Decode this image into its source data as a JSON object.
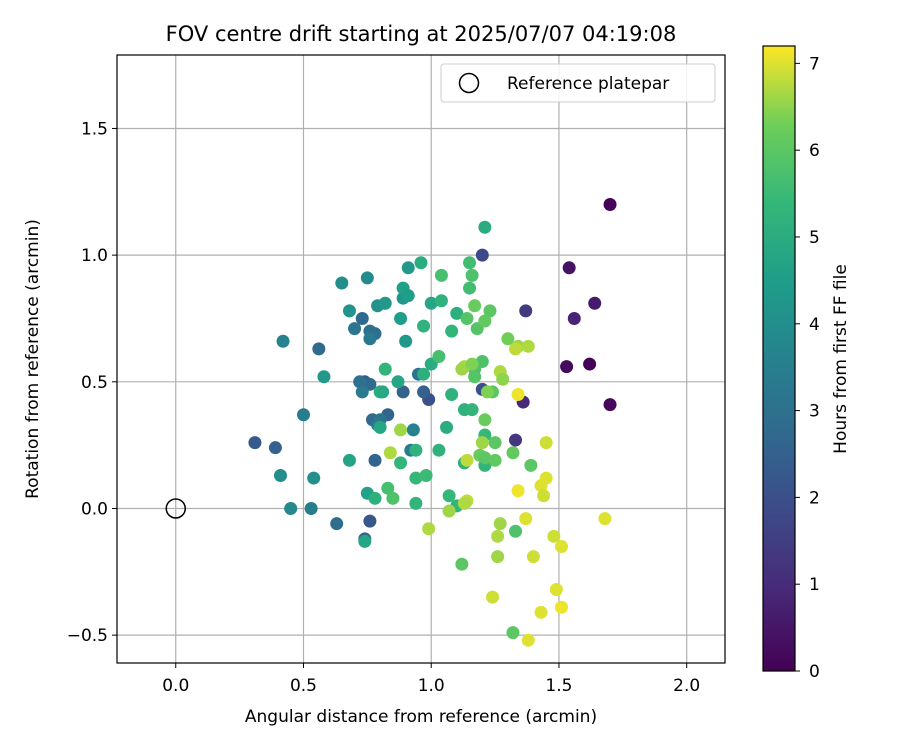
{
  "chart_data": {
    "type": "scatter",
    "title": "FOV centre drift starting at 2025/07/07 04:19:08",
    "xlabel": "Angular distance from reference (arcmin)",
    "ylabel": "Rotation from reference (arcmin)",
    "xlim": [
      -0.23,
      2.15
    ],
    "ylim": [
      -0.61,
      1.79
    ],
    "xticks": [
      0.0,
      0.5,
      1.0,
      1.5,
      2.0
    ],
    "xtick_labels": [
      "0.0",
      "0.5",
      "1.0",
      "1.5",
      "2.0"
    ],
    "yticks": [
      -0.5,
      0.0,
      0.5,
      1.0,
      1.5
    ],
    "ytick_labels": [
      "−0.5",
      "0.0",
      "0.5",
      "1.0",
      "1.5"
    ],
    "grid": true,
    "legend": {
      "placement": "top-right",
      "entries": [
        "Reference platepar"
      ]
    },
    "reference_point": {
      "x": 0.0,
      "y": 0.0,
      "label": "Reference platepar"
    },
    "colorbar": {
      "label": "Hours from first FF file",
      "colormap": "viridis",
      "range": [
        0,
        7.2
      ],
      "ticks": [
        0,
        1,
        2,
        3,
        4,
        5,
        6,
        7
      ],
      "tick_labels": [
        "0",
        "1",
        "2",
        "3",
        "4",
        "5",
        "6",
        "7"
      ]
    },
    "series": [
      {
        "color_by": "hours",
        "points": [
          {
            "x": 1.7,
            "y": 1.2,
            "h": 0.1
          },
          {
            "x": 1.54,
            "y": 0.95,
            "h": 0.4
          },
          {
            "x": 1.64,
            "y": 0.81,
            "h": 0.6
          },
          {
            "x": 1.56,
            "y": 0.75,
            "h": 0.8
          },
          {
            "x": 1.53,
            "y": 0.56,
            "h": 0.2
          },
          {
            "x": 1.62,
            "y": 0.57,
            "h": 0.1
          },
          {
            "x": 1.7,
            "y": 0.41,
            "h": 0.2
          },
          {
            "x": 1.36,
            "y": 0.42,
            "h": 0.9
          },
          {
            "x": 1.33,
            "y": 0.27,
            "h": 1.3
          },
          {
            "x": 1.37,
            "y": 0.78,
            "h": 1.4
          },
          {
            "x": 1.2,
            "y": 1.0,
            "h": 1.8
          },
          {
            "x": 1.2,
            "y": 0.47,
            "h": 2.0
          },
          {
            "x": 0.99,
            "y": 0.43,
            "h": 2.0
          },
          {
            "x": 0.76,
            "y": -0.05,
            "h": 2.2
          },
          {
            "x": 0.74,
            "y": -0.12,
            "h": 2.6
          },
          {
            "x": 0.31,
            "y": 0.26,
            "h": 2.3
          },
          {
            "x": 0.39,
            "y": 0.24,
            "h": 2.5
          },
          {
            "x": 0.56,
            "y": 0.63,
            "h": 2.8
          },
          {
            "x": 0.42,
            "y": 0.66,
            "h": 3.6
          },
          {
            "x": 0.5,
            "y": 0.37,
            "h": 3.4
          },
          {
            "x": 0.63,
            "y": -0.06,
            "h": 2.9
          },
          {
            "x": 0.78,
            "y": 0.19,
            "h": 2.6
          },
          {
            "x": 0.83,
            "y": 0.37,
            "h": 2.6
          },
          {
            "x": 0.89,
            "y": 0.46,
            "h": 2.5
          },
          {
            "x": 0.97,
            "y": 0.46,
            "h": 2.5
          },
          {
            "x": 0.74,
            "y": 0.5,
            "h": 2.4
          },
          {
            "x": 0.76,
            "y": 0.49,
            "h": 2.8
          },
          {
            "x": 0.77,
            "y": 0.35,
            "h": 2.8
          },
          {
            "x": 0.73,
            "y": 0.75,
            "h": 2.7
          },
          {
            "x": 0.76,
            "y": 0.7,
            "h": 3.0
          },
          {
            "x": 0.7,
            "y": 0.71,
            "h": 3.2
          },
          {
            "x": 0.78,
            "y": 0.69,
            "h": 2.9
          },
          {
            "x": 0.76,
            "y": 0.67,
            "h": 3.3
          },
          {
            "x": 0.72,
            "y": 0.5,
            "h": 3.0
          },
          {
            "x": 0.73,
            "y": 0.46,
            "h": 3.3
          },
          {
            "x": 0.8,
            "y": 0.35,
            "h": 3.1
          },
          {
            "x": 0.79,
            "y": 0.33,
            "h": 3.3
          },
          {
            "x": 0.92,
            "y": 0.23,
            "h": 3.4
          },
          {
            "x": 0.95,
            "y": 0.53,
            "h": 3.1
          },
          {
            "x": 0.93,
            "y": 0.31,
            "h": 3.6
          },
          {
            "x": 0.41,
            "y": 0.13,
            "h": 4.0
          },
          {
            "x": 0.45,
            "y": 0.0,
            "h": 3.8
          },
          {
            "x": 0.53,
            "y": 0.0,
            "h": 3.5
          },
          {
            "x": 0.54,
            "y": 0.12,
            "h": 4.0
          },
          {
            "x": 0.58,
            "y": 0.52,
            "h": 4.3
          },
          {
            "x": 0.65,
            "y": 0.89,
            "h": 4.0
          },
          {
            "x": 0.68,
            "y": 0.78,
            "h": 4.2
          },
          {
            "x": 0.75,
            "y": 0.91,
            "h": 3.9
          },
          {
            "x": 0.79,
            "y": 0.8,
            "h": 4.1
          },
          {
            "x": 0.82,
            "y": 0.81,
            "h": 4.3
          },
          {
            "x": 0.88,
            "y": 0.75,
            "h": 4.5
          },
          {
            "x": 0.89,
            "y": 0.83,
            "h": 4.3
          },
          {
            "x": 0.89,
            "y": 0.87,
            "h": 4.6
          },
          {
            "x": 0.91,
            "y": 0.95,
            "h": 4.3
          },
          {
            "x": 0.91,
            "y": 0.84,
            "h": 4.5
          },
          {
            "x": 0.9,
            "y": 0.66,
            "h": 4.3
          },
          {
            "x": 0.8,
            "y": 0.46,
            "h": 5.0
          },
          {
            "x": 0.81,
            "y": 0.46,
            "h": 4.9
          },
          {
            "x": 0.82,
            "y": 0.55,
            "h": 5.3
          },
          {
            "x": 0.87,
            "y": 0.5,
            "h": 4.8
          },
          {
            "x": 0.8,
            "y": 0.32,
            "h": 4.8
          },
          {
            "x": 0.75,
            "y": 0.06,
            "h": 4.6
          },
          {
            "x": 0.78,
            "y": 0.04,
            "h": 5.1
          },
          {
            "x": 0.68,
            "y": 0.19,
            "h": 4.7
          },
          {
            "x": 0.74,
            "y": -0.13,
            "h": 4.8
          },
          {
            "x": 0.96,
            "y": 0.97,
            "h": 5.0
          },
          {
            "x": 1.21,
            "y": 1.11,
            "h": 5.0
          },
          {
            "x": 0.97,
            "y": 0.72,
            "h": 5.2
          },
          {
            "x": 1.0,
            "y": 0.81,
            "h": 4.8
          },
          {
            "x": 1.04,
            "y": 0.82,
            "h": 5.2
          },
          {
            "x": 1.1,
            "y": 0.77,
            "h": 5.1
          },
          {
            "x": 1.08,
            "y": 0.7,
            "h": 5.3
          },
          {
            "x": 1.0,
            "y": 0.57,
            "h": 5.0
          },
          {
            "x": 0.97,
            "y": 0.53,
            "h": 5.1
          },
          {
            "x": 1.08,
            "y": 0.45,
            "h": 5.2
          },
          {
            "x": 1.13,
            "y": 0.39,
            "h": 5.2
          },
          {
            "x": 1.06,
            "y": 0.32,
            "h": 5.0
          },
          {
            "x": 1.03,
            "y": 0.23,
            "h": 5.2
          },
          {
            "x": 0.94,
            "y": 0.23,
            "h": 5.2
          },
          {
            "x": 0.88,
            "y": 0.18,
            "h": 5.3
          },
          {
            "x": 0.83,
            "y": 0.08,
            "h": 5.7
          },
          {
            "x": 0.85,
            "y": 0.04,
            "h": 5.8
          },
          {
            "x": 0.94,
            "y": 0.02,
            "h": 5.3
          },
          {
            "x": 0.94,
            "y": 0.12,
            "h": 5.4
          },
          {
            "x": 0.98,
            "y": 0.13,
            "h": 5.5
          },
          {
            "x": 1.07,
            "y": 0.05,
            "h": 5.4
          },
          {
            "x": 1.1,
            "y": 0.01,
            "h": 5.3
          },
          {
            "x": 1.13,
            "y": 0.18,
            "h": 5.1
          },
          {
            "x": 1.16,
            "y": 0.39,
            "h": 5.3
          },
          {
            "x": 1.21,
            "y": 0.29,
            "h": 5.4
          },
          {
            "x": 1.21,
            "y": 0.17,
            "h": 5.3
          },
          {
            "x": 1.17,
            "y": 0.55,
            "h": 5.8
          },
          {
            "x": 1.18,
            "y": 0.71,
            "h": 5.9
          },
          {
            "x": 1.04,
            "y": 0.92,
            "h": 5.7
          },
          {
            "x": 1.15,
            "y": 0.97,
            "h": 5.6
          },
          {
            "x": 1.16,
            "y": 0.92,
            "h": 5.8
          },
          {
            "x": 1.15,
            "y": 0.87,
            "h": 5.6
          },
          {
            "x": 1.14,
            "y": 0.75,
            "h": 5.9
          },
          {
            "x": 1.21,
            "y": 0.74,
            "h": 6.1
          },
          {
            "x": 1.23,
            "y": 0.78,
            "h": 6.0
          },
          {
            "x": 1.17,
            "y": 0.8,
            "h": 6.2
          },
          {
            "x": 1.03,
            "y": 0.6,
            "h": 5.7
          },
          {
            "x": 1.2,
            "y": 0.58,
            "h": 5.8
          },
          {
            "x": 1.17,
            "y": 0.52,
            "h": 5.9
          },
          {
            "x": 1.24,
            "y": 0.46,
            "h": 6.0
          },
          {
            "x": 1.21,
            "y": 0.35,
            "h": 6.2
          },
          {
            "x": 1.25,
            "y": 0.26,
            "h": 6.0
          },
          {
            "x": 1.19,
            "y": 0.21,
            "h": 6.2
          },
          {
            "x": 1.21,
            "y": 0.2,
            "h": 6.0
          },
          {
            "x": 1.25,
            "y": 0.19,
            "h": 6.1
          },
          {
            "x": 1.32,
            "y": 0.22,
            "h": 6.1
          },
          {
            "x": 1.39,
            "y": 0.17,
            "h": 6.0
          },
          {
            "x": 1.33,
            "y": -0.09,
            "h": 5.8
          },
          {
            "x": 1.12,
            "y": -0.22,
            "h": 6.0
          },
          {
            "x": 1.32,
            "y": -0.49,
            "h": 6.0
          },
          {
            "x": 1.3,
            "y": 0.67,
            "h": 6.3
          },
          {
            "x": 1.34,
            "y": 0.64,
            "h": 6.6
          },
          {
            "x": 1.27,
            "y": 0.54,
            "h": 6.7
          },
          {
            "x": 1.28,
            "y": 0.51,
            "h": 6.5
          },
          {
            "x": 1.22,
            "y": 0.46,
            "h": 6.4
          },
          {
            "x": 1.33,
            "y": 0.63,
            "h": 6.8
          },
          {
            "x": 1.38,
            "y": 0.64,
            "h": 6.7
          },
          {
            "x": 1.34,
            "y": 0.45,
            "h": 7.1
          },
          {
            "x": 1.13,
            "y": 0.56,
            "h": 6.7
          },
          {
            "x": 1.12,
            "y": 0.55,
            "h": 6.6
          },
          {
            "x": 1.16,
            "y": 0.57,
            "h": 6.4
          },
          {
            "x": 1.2,
            "y": 0.26,
            "h": 6.6
          },
          {
            "x": 1.14,
            "y": 0.19,
            "h": 6.8
          },
          {
            "x": 0.88,
            "y": 0.31,
            "h": 6.6
          },
          {
            "x": 0.84,
            "y": 0.22,
            "h": 6.7
          },
          {
            "x": 0.99,
            "y": -0.08,
            "h": 6.7
          },
          {
            "x": 1.07,
            "y": -0.01,
            "h": 6.6
          },
          {
            "x": 1.14,
            "y": 0.03,
            "h": 6.8
          },
          {
            "x": 1.13,
            "y": 0.02,
            "h": 6.7
          },
          {
            "x": 1.27,
            "y": -0.06,
            "h": 6.6
          },
          {
            "x": 1.26,
            "y": -0.11,
            "h": 6.7
          },
          {
            "x": 1.26,
            "y": -0.19,
            "h": 6.6
          },
          {
            "x": 1.4,
            "y": -0.19,
            "h": 6.9
          },
          {
            "x": 1.24,
            "y": -0.35,
            "h": 6.9
          },
          {
            "x": 1.34,
            "y": 0.07,
            "h": 7.1
          },
          {
            "x": 1.37,
            "y": -0.04,
            "h": 7.0
          },
          {
            "x": 1.43,
            "y": 0.09,
            "h": 7.0
          },
          {
            "x": 1.44,
            "y": 0.05,
            "h": 6.9
          },
          {
            "x": 1.45,
            "y": 0.12,
            "h": 7.0
          },
          {
            "x": 1.45,
            "y": 0.26,
            "h": 6.9
          },
          {
            "x": 1.48,
            "y": -0.11,
            "h": 6.9
          },
          {
            "x": 1.51,
            "y": -0.15,
            "h": 7.0
          },
          {
            "x": 1.49,
            "y": -0.32,
            "h": 7.0
          },
          {
            "x": 1.51,
            "y": -0.39,
            "h": 7.1
          },
          {
            "x": 1.43,
            "y": -0.41,
            "h": 7.0
          },
          {
            "x": 1.38,
            "y": -0.52,
            "h": 7.0
          },
          {
            "x": 1.68,
            "y": -0.04,
            "h": 7.0
          }
        ]
      }
    ]
  }
}
